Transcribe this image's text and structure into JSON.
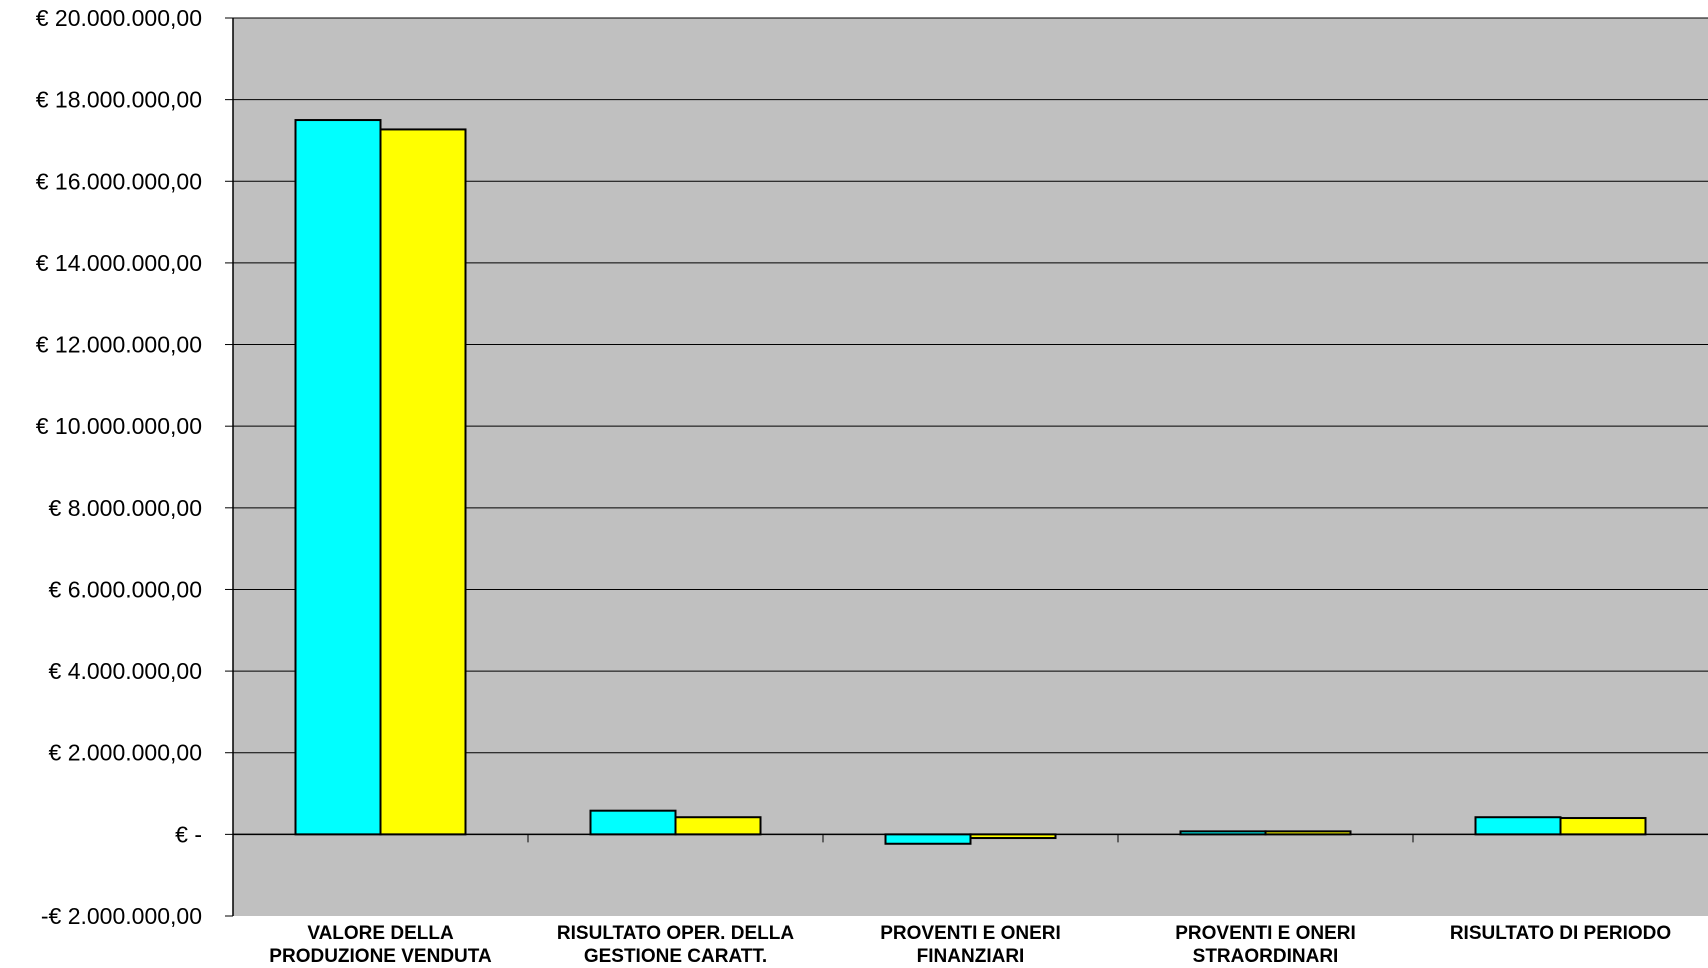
{
  "chart_data": {
    "type": "bar",
    "categories": [
      [
        "VALORE DELLA",
        "PRODUZIONE VENDUTA"
      ],
      [
        "RISULTATO  OPER. DELLA",
        "GESTIONE CARATT."
      ],
      [
        "PROVENTI E ONERI",
        "FINANZIARI"
      ],
      [
        "PROVENTI E ONERI",
        "STRAORDINARI"
      ],
      [
        "RISULTATO DI PERIODO"
      ]
    ],
    "series": [
      {
        "color": "#00FFFF",
        "values": [
          17500000,
          580000,
          -230000,
          30000,
          420000
        ]
      },
      {
        "color": "#FFFF00",
        "values": [
          17270000,
          420000,
          -90000,
          60000,
          400000
        ]
      }
    ],
    "ylim": [
      -2000000,
      20000000
    ],
    "y_ticks": [
      {
        "value": 20000000,
        "label": "€ 20.000.000,00"
      },
      {
        "value": 18000000,
        "label": "€ 18.000.000,00"
      },
      {
        "value": 16000000,
        "label": "€ 16.000.000,00"
      },
      {
        "value": 14000000,
        "label": "€ 14.000.000,00"
      },
      {
        "value": 12000000,
        "label": "€ 12.000.000,00"
      },
      {
        "value": 10000000,
        "label": "€ 10.000.000,00"
      },
      {
        "value": 8000000,
        "label": "€ 8.000.000,00"
      },
      {
        "value": 6000000,
        "label": "€ 6.000.000,00"
      },
      {
        "value": 4000000,
        "label": "€ 4.000.000,00"
      },
      {
        "value": 2000000,
        "label": "€ 2.000.000,00"
      },
      {
        "value": 0,
        "label": "€ -"
      },
      {
        "value": -2000000,
        "label": "-€ 2.000.000,00"
      }
    ],
    "grid": true,
    "plot_background": "#C0C0C0",
    "legend": "none"
  }
}
